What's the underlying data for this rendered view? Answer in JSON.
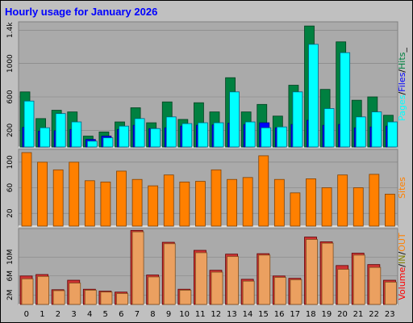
{
  "title": "Hourly usage for January 2026",
  "colors": {
    "background": "#c0c0c0",
    "panel": "#aaaaaa",
    "title": "#0000ff",
    "pages": "#00ffff",
    "files": "#0000ff",
    "hits": "#008040",
    "sites": "#ff8000",
    "volume": "#ff0000",
    "in_out": "#808000",
    "volume_bar": "#cc3333",
    "volume_fill": "#eba060"
  },
  "chart_data": [
    {
      "type": "bar",
      "panel": "hits",
      "categories": [
        "0",
        "1",
        "2",
        "3",
        "4",
        "5",
        "6",
        "7",
        "8",
        "9",
        "10",
        "11",
        "12",
        "13",
        "14",
        "15",
        "16",
        "17",
        "18",
        "19",
        "20",
        "21",
        "22",
        "23"
      ],
      "y_ticks": [
        "200",
        "600",
        "1000",
        "1.4k"
      ],
      "ylim": [
        0,
        1500
      ],
      "right_label": [
        "Pages",
        "/",
        "Files",
        "/",
        "Hits",
        "_"
      ],
      "series": [
        {
          "name": "Hits",
          "values": [
            660,
            340,
            440,
            420,
            130,
            180,
            300,
            470,
            290,
            540,
            330,
            530,
            420,
            830,
            420,
            510,
            370,
            740,
            1450,
            690,
            1260,
            560,
            600,
            380
          ]
        },
        {
          "name": "Files",
          "values": [
            235,
            190,
            195,
            210,
            90,
            130,
            210,
            260,
            220,
            230,
            250,
            260,
            265,
            285,
            270,
            290,
            230,
            270,
            320,
            260,
            270,
            230,
            240,
            250
          ]
        },
        {
          "name": "Pages",
          "values": [
            550,
            230,
            400,
            300,
            70,
            110,
            250,
            340,
            220,
            360,
            280,
            290,
            290,
            660,
            300,
            230,
            240,
            660,
            1230,
            460,
            1130,
            360,
            420,
            300
          ]
        }
      ]
    },
    {
      "type": "bar",
      "panel": "sites",
      "categories": [
        "0",
        "1",
        "2",
        "3",
        "4",
        "5",
        "6",
        "7",
        "8",
        "9",
        "10",
        "11",
        "12",
        "13",
        "14",
        "15",
        "16",
        "17",
        "18",
        "19",
        "20",
        "21",
        "22",
        "23"
      ],
      "y_ticks": [
        "20",
        "60",
        "100"
      ],
      "ylim": [
        0,
        120
      ],
      "right_label": [
        "Sites"
      ],
      "series": [
        {
          "name": "Sites",
          "values": [
            115,
            100,
            88,
            100,
            71,
            69,
            86,
            73,
            63,
            80,
            69,
            70,
            88,
            73,
            76,
            110,
            73,
            52,
            74,
            60,
            80,
            60,
            81,
            50
          ]
        }
      ]
    },
    {
      "type": "bar",
      "panel": "volume",
      "categories": [
        "0",
        "1",
        "2",
        "3",
        "4",
        "5",
        "6",
        "7",
        "8",
        "9",
        "10",
        "11",
        "12",
        "13",
        "14",
        "15",
        "16",
        "17",
        "18",
        "19",
        "20",
        "21",
        "22",
        "23"
      ],
      "y_ticks": [
        "2M",
        "6M",
        "10M"
      ],
      "ylim": [
        0,
        16
      ],
      "right_label": [
        "Volume",
        "/",
        "IN",
        "/",
        "OUT"
      ],
      "series": [
        {
          "name": "Volume",
          "values": [
            6,
            6.3,
            3.1,
            5.1,
            3.2,
            2.8,
            2.6,
            15.6,
            6.2,
            13.1,
            3.2,
            11.4,
            7.2,
            10.6,
            5.3,
            10.7,
            6,
            5.5,
            14.2,
            13.2,
            8.2,
            10.8,
            8.4,
            5.1
          ]
        },
        {
          "name": "Out",
          "values": [
            5.4,
            5.9,
            2.9,
            4.5,
            3,
            2.6,
            2.3,
            15.3,
            5.8,
            12.8,
            3,
            10.9,
            6.8,
            10.1,
            4.9,
            10.4,
            5.7,
            5.2,
            13.7,
            12.9,
            7.4,
            10.4,
            7.8,
            4.7
          ]
        }
      ]
    }
  ]
}
